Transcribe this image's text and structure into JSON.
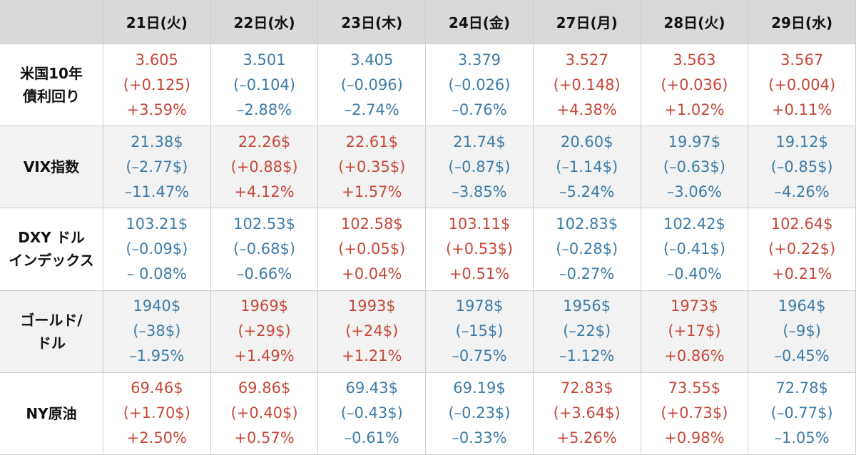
{
  "table": {
    "columns": [
      "21日(火)",
      "22日(水)",
      "23日(木)",
      "24日(金)",
      "27日(月)",
      "28日(火)",
      "29日(水)"
    ],
    "rows": [
      {
        "label": [
          "米国10年",
          "債利回り"
        ],
        "cells": [
          {
            "color": "#c5493a",
            "lines": [
              "3.605",
              "(+0.125)",
              "+3.59%"
            ]
          },
          {
            "color": "#3e7ca6",
            "lines": [
              "3.501",
              "(–0.104)",
              "–2.88%"
            ]
          },
          {
            "color": "#3e7ca6",
            "lines": [
              "3.405",
              "(–0.096)",
              "–2.74%"
            ]
          },
          {
            "color": "#3e7ca6",
            "lines": [
              "3.379",
              "(–0.026)",
              "–0.76%"
            ]
          },
          {
            "color": "#c5493a",
            "lines": [
              "3.527",
              "(+0.148)",
              "+4.38%"
            ]
          },
          {
            "color": "#c5493a",
            "lines": [
              "3.563",
              "(+0.036)",
              "+1.02%"
            ]
          },
          {
            "color": "#c5493a",
            "lines": [
              "3.567",
              "(+0.004)",
              "+0.11%"
            ]
          }
        ]
      },
      {
        "label": [
          "VIX指数"
        ],
        "cells": [
          {
            "color": "#3e7ca6",
            "lines": [
              "21.38$",
              "(–2.77$)",
              "–11.47%"
            ]
          },
          {
            "color": "#c5493a",
            "lines": [
              "22.26$",
              "(+0.88$)",
              "+4.12%"
            ]
          },
          {
            "color": "#c5493a",
            "lines": [
              "22.61$",
              "(+0.35$)",
              "+1.57%"
            ]
          },
          {
            "color": "#3e7ca6",
            "lines": [
              "21.74$",
              "(–0.87$)",
              "–3.85%"
            ]
          },
          {
            "color": "#3e7ca6",
            "lines": [
              "20.60$",
              "(–1.14$)",
              "–5.24%"
            ]
          },
          {
            "color": "#3e7ca6",
            "lines": [
              "19.97$",
              "(–0.63$)",
              "–3.06%"
            ]
          },
          {
            "color": "#3e7ca6",
            "lines": [
              "19.12$",
              "(–0.85$)",
              "–4.26%"
            ]
          }
        ]
      },
      {
        "label": [
          "DXY ドル",
          "インデックス"
        ],
        "cells": [
          {
            "color": "#3e7ca6",
            "lines": [
              "103.21$",
              "(–0.09$)",
              "– 0.08%"
            ]
          },
          {
            "color": "#3e7ca6",
            "lines": [
              "102.53$",
              "(–0.68$)",
              "–0.66%"
            ]
          },
          {
            "color": "#c5493a",
            "lines": [
              "102.58$",
              "(+0.05$)",
              "+0.04%"
            ]
          },
          {
            "color": "#c5493a",
            "lines": [
              "103.11$",
              "(+0.53$)",
              "+0.51%"
            ]
          },
          {
            "color": "#3e7ca6",
            "lines": [
              "102.83$",
              "(–0.28$)",
              "–0.27%"
            ]
          },
          {
            "color": "#3e7ca6",
            "lines": [
              "102.42$",
              "(–0.41$)",
              "–0.40%"
            ]
          },
          {
            "color": "#c5493a",
            "lines": [
              "102.64$",
              "(+0.22$)",
              "+0.21%"
            ]
          }
        ]
      },
      {
        "label": [
          "ゴールド/",
          "ドル"
        ],
        "cells": [
          {
            "color": "#3e7ca6",
            "lines": [
              "1940$",
              "(–38$)",
              "–1.95%"
            ]
          },
          {
            "color": "#c5493a",
            "lines": [
              "1969$",
              "(+29$)",
              "+1.49%"
            ]
          },
          {
            "color": "#c5493a",
            "lines": [
              "1993$",
              "(+24$)",
              "+1.21%"
            ]
          },
          {
            "color": "#3e7ca6",
            "lines": [
              "1978$",
              "(–15$)",
              "–0.75%"
            ]
          },
          {
            "color": "#3e7ca6",
            "lines": [
              "1956$",
              "(–22$)",
              "–1.12%"
            ]
          },
          {
            "color": "#c5493a",
            "lines": [
              "1973$",
              "(+17$)",
              "+0.86%"
            ]
          },
          {
            "color": "#3e7ca6",
            "lines": [
              "1964$",
              "(–9$)",
              "–0.45%"
            ]
          }
        ]
      },
      {
        "label": [
          "NY原油"
        ],
        "cells": [
          {
            "color": "#c5493a",
            "lines": [
              "69.46$",
              "(+1.70$)",
              "+2.50%"
            ]
          },
          {
            "color": "#c5493a",
            "lines": [
              "69.86$",
              "(+0.40$)",
              "+0.57%"
            ]
          },
          {
            "color": "#3e7ca6",
            "lines": [
              "69.43$",
              "(–0.43$)",
              "–0.61%"
            ]
          },
          {
            "color": "#3e7ca6",
            "lines": [
              "69.19$",
              "(–0.23$)",
              "–0.33%"
            ]
          },
          {
            "color": "#c5493a",
            "lines": [
              "72.83$",
              "(+3.64$)",
              "+5.26%"
            ]
          },
          {
            "color": "#c5493a",
            "lines": [
              "73.55$",
              "(+0.73$)",
              "+0.98%"
            ]
          },
          {
            "color": "#3e7ca6",
            "lines": [
              "72.78$",
              "(–0.77$)",
              "–1.05%"
            ]
          }
        ]
      }
    ]
  }
}
